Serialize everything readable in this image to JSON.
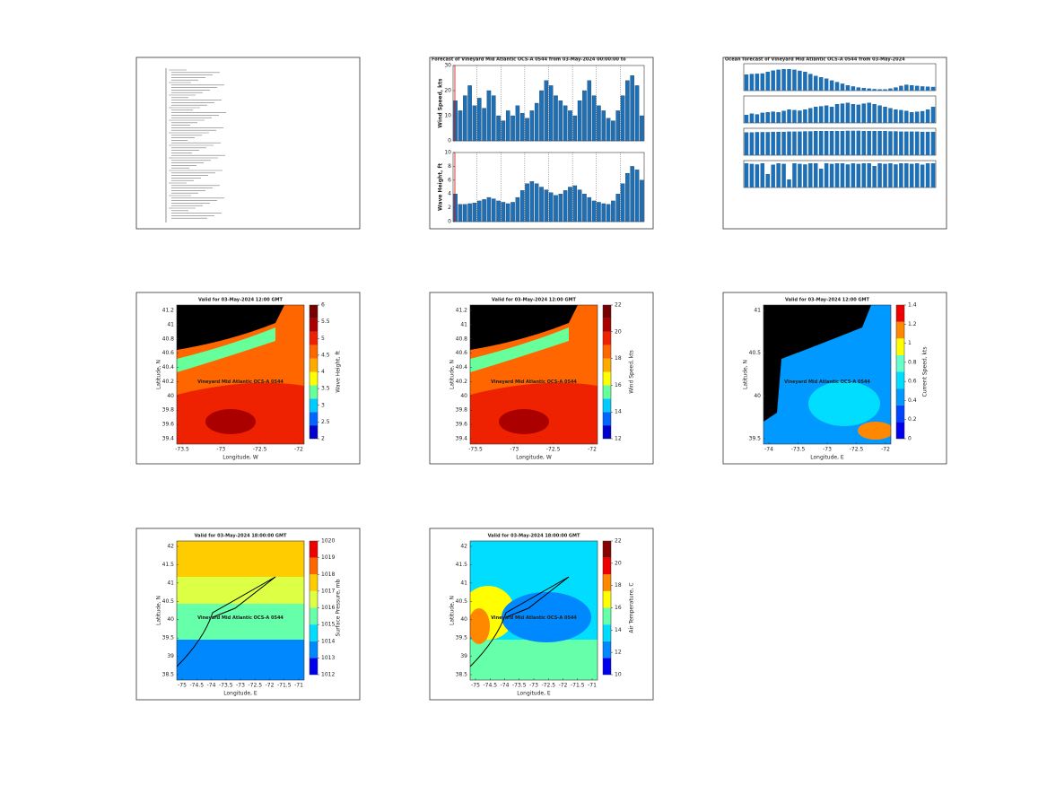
{
  "timeseries": {
    "title": "Forecast of Vineyard Mid Atlantic OCS-A 0544 from 03-May-2024 00:00:00 to",
    "wind": {
      "ylabel": "Wind Speed, kts",
      "ylim": [
        0,
        30
      ],
      "yticks": [
        0,
        10,
        20,
        30
      ],
      "color": "#1f6fb4",
      "values": [
        16,
        12,
        18,
        22,
        14,
        17,
        13,
        20,
        18,
        10,
        8,
        12,
        10,
        14,
        11,
        9,
        12,
        15,
        20,
        24,
        22,
        18,
        16,
        14,
        12,
        10,
        16,
        20,
        24,
        18,
        14,
        12,
        9,
        8,
        12,
        18,
        24,
        26,
        22,
        10
      ]
    },
    "wave": {
      "ylabel": "Wave Height, ft",
      "ylim": [
        0,
        10
      ],
      "yticks": [
        0,
        2,
        4,
        6,
        8,
        10
      ],
      "color": "#1f6fb4",
      "values": [
        4,
        2.5,
        2.5,
        2.6,
        2.7,
        3,
        3.2,
        3.5,
        3.3,
        3,
        2.8,
        2.6,
        2.8,
        3.5,
        4.5,
        5.5,
        5.8,
        5.5,
        5,
        4.6,
        4.2,
        3.8,
        4,
        4.5,
        5,
        5.2,
        4.6,
        4,
        3.5,
        3,
        2.8,
        2.6,
        2.5,
        3,
        4,
        5.5,
        7,
        8,
        7.5,
        6
      ]
    }
  },
  "ocean_series": {
    "title": "Ocean forecast of Vineyard Mid Atlantic OCS-A 0544 from 03-May-2024",
    "color": "#1f6fb4",
    "ylim": [
      0,
      1
    ],
    "rows": [
      [
        0.6,
        0.62,
        0.63,
        0.64,
        0.7,
        0.75,
        0.78,
        0.8,
        0.8,
        0.78,
        0.74,
        0.7,
        0.62,
        0.55,
        0.5,
        0.45,
        0.38,
        0.32,
        0.26,
        0.2,
        0.16,
        0.12,
        0.1,
        0.08,
        0.06,
        0.05,
        0.05,
        0.08,
        0.12,
        0.18,
        0.22,
        0.2,
        0.18,
        0.16,
        0.15,
        0.14
      ],
      [
        0.3,
        0.35,
        0.32,
        0.38,
        0.4,
        0.42,
        0.4,
        0.45,
        0.5,
        0.48,
        0.46,
        0.5,
        0.55,
        0.6,
        0.62,
        0.65,
        0.6,
        0.7,
        0.72,
        0.75,
        0.7,
        0.68,
        0.72,
        0.75,
        0.7,
        0.65,
        0.6,
        0.55,
        0.5,
        0.48,
        0.45,
        0.4,
        0.42,
        0.44,
        0.5,
        0.6
      ],
      [
        0.85,
        0.85,
        0.86,
        0.86,
        0.86,
        0.87,
        0.87,
        0.87,
        0.88,
        0.88,
        0.88,
        0.89,
        0.89,
        0.9,
        0.9,
        0.9,
        0.9,
        0.9,
        0.9,
        0.91,
        0.91,
        0.91,
        0.9,
        0.9,
        0.9,
        0.9,
        0.9,
        0.89,
        0.89,
        0.88,
        0.88,
        0.88,
        0.88,
        0.87,
        0.87,
        0.87
      ],
      [
        0.9,
        0.88,
        0.86,
        0.9,
        0.5,
        0.85,
        0.9,
        0.88,
        0.3,
        0.9,
        0.88,
        0.86,
        0.9,
        0.9,
        0.7,
        0.9,
        0.88,
        0.9,
        0.9,
        0.86,
        0.9,
        0.88,
        0.9,
        0.9,
        0.8,
        0.9,
        0.88,
        0.9,
        0.86,
        0.9,
        0.9,
        0.88,
        0.9,
        0.85,
        0.9,
        0.9
      ]
    ]
  },
  "maps": [
    {
      "title": "Valid for 03-May-2024 12:00 GMT",
      "site": "Vineyard Mid Atlantic OCS-A 0544",
      "xlabel": "Longitude, W",
      "ylabel": "Latitude, N",
      "colorbar_label": "Wave Height, ft",
      "xticks": [
        -73.5,
        -73,
        -72.5,
        -72
      ],
      "yticks": [
        41.2,
        41,
        40.8,
        40.6,
        40.4,
        40.2,
        40,
        39.8,
        39.6,
        39.4
      ],
      "cbar_ticks": [
        2,
        2.5,
        3,
        3.5,
        4,
        4.5,
        5,
        5.5,
        6
      ],
      "colors": [
        "#0000cc",
        "#0066ff",
        "#00ccff",
        "#66ff99",
        "#ffff00",
        "#ffaa00",
        "#ff6600",
        "#ee2200",
        "#aa0000",
        "#770000"
      ]
    },
    {
      "title": "Valid for 03-May-2024 12:00 GMT",
      "site": "Vineyard Mid Atlantic OCS-A 0544",
      "xlabel": "Longitude, W",
      "ylabel": "Latitude, N",
      "colorbar_label": "Wind Speed, kts",
      "xticks": [
        -73.5,
        -73,
        -72.5,
        -72
      ],
      "yticks": [
        41.2,
        41,
        40.8,
        40.6,
        40.4,
        40.2,
        40,
        39.8,
        39.6,
        39.4
      ],
      "cbar_ticks": [
        12,
        14,
        16,
        18,
        20,
        22
      ],
      "colors": [
        "#0000cc",
        "#0066ff",
        "#00ccff",
        "#66ff99",
        "#ffff00",
        "#ffaa00",
        "#ff6600",
        "#ee2200",
        "#aa0000",
        "#770000"
      ]
    },
    {
      "title": "Valid for 03-May-2024 12:00 GMT",
      "site": "Vineyard Mid Atlantic OCS-A 0544",
      "xlabel": "Longitude, E",
      "ylabel": "Latitude, N",
      "colorbar_label": "Current Speed, kts",
      "xticks": [
        -74,
        -73.5,
        -73,
        -72.5,
        -72
      ],
      "yticks": [
        41,
        40.5,
        40,
        39.5
      ],
      "cbar_ticks": [
        0,
        0.2,
        0.4,
        0.6,
        0.8,
        1,
        1.2,
        1.4
      ],
      "colors": [
        "#0000ee",
        "#0044ff",
        "#0099ff",
        "#00ddff",
        "#66ffcc",
        "#ffff00",
        "#ff8800",
        "#ee0000"
      ]
    },
    {
      "title": "Valid for 03-May-2024 18:00:00 GMT",
      "site": "Vineyard Mid Atlantic OCS-A 0544",
      "xlabel": "Longitude, E",
      "ylabel": "Latitude, N",
      "colorbar_label": "Surface Pressure, mb",
      "xticks": [
        -75,
        -74.5,
        -74,
        -73.5,
        -73,
        -72.5,
        -72,
        -71.5,
        -71
      ],
      "yticks": [
        42,
        41.5,
        41,
        40.5,
        40,
        39.5,
        39,
        38.5
      ],
      "cbar_ticks": [
        1012,
        1013,
        1014,
        1015,
        1016,
        1017,
        1018,
        1019,
        1020
      ],
      "colors": [
        "#0000ee",
        "#0088ff",
        "#00ddff",
        "#66ffaa",
        "#ddff44",
        "#ffcc00",
        "#ff6600",
        "#ee0000"
      ]
    },
    {
      "title": "Valid for 03-May-2024 18:00:00 GMT",
      "site": "Vineyard Mid Atlantic OCS-A 0544",
      "xlabel": "Longitude, E",
      "ylabel": "Latitude, N",
      "colorbar_label": "Air Temperature, C",
      "xticks": [
        -75,
        -74.5,
        -74,
        -73.5,
        -73,
        -72.5,
        -72,
        -71.5,
        -71
      ],
      "yticks": [
        42,
        41.5,
        41,
        40.5,
        40,
        39.5,
        39,
        38.5
      ],
      "cbar_ticks": [
        10,
        12,
        14,
        16,
        18,
        20,
        22
      ],
      "colors": [
        "#0000ee",
        "#0088ff",
        "#00ddff",
        "#66ffaa",
        "#ffff00",
        "#ff8800",
        "#ee0000",
        "#880000"
      ]
    }
  ]
}
